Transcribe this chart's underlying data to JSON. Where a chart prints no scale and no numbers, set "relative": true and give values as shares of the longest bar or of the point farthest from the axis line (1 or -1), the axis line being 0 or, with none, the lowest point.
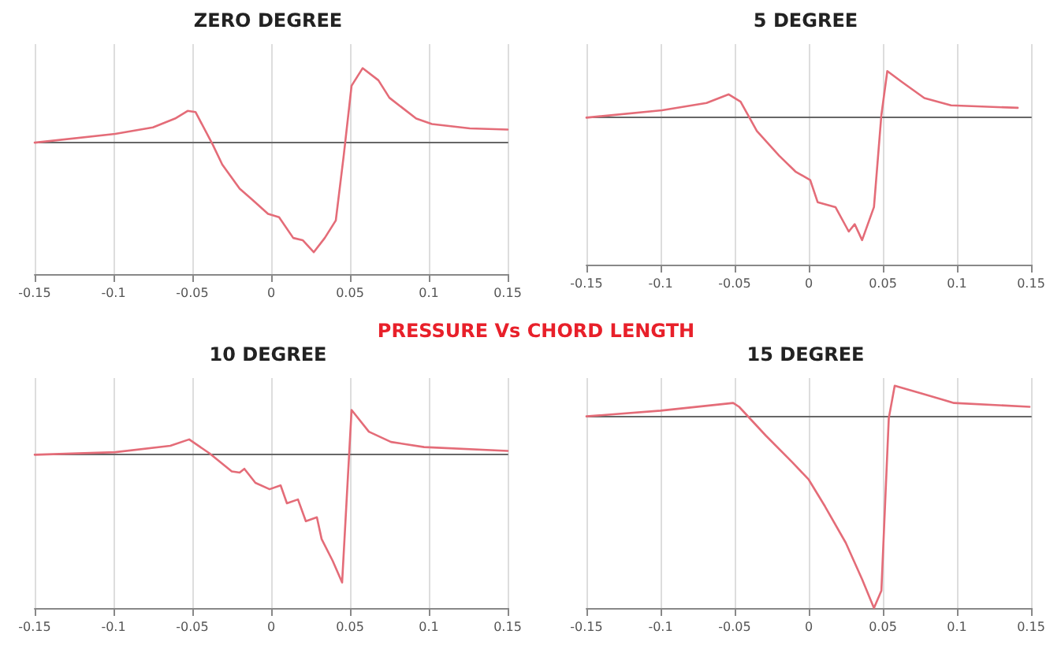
{
  "chart_data": [
    {
      "type": "line",
      "title": "ZERO DEGREE",
      "relative": true,
      "xlim": [
        -0.15,
        0.15
      ],
      "xticks": [
        -0.15,
        -0.1,
        -0.05,
        0,
        0.05,
        0.1,
        0.15
      ],
      "grid": "x",
      "marker": "none",
      "line_style": "solid",
      "series": [
        {
          "color": "#e46c78",
          "x": [
            -0.15,
            -0.099,
            -0.075,
            -0.061,
            -0.053,
            -0.048,
            -0.037,
            -0.031,
            -0.02,
            -0.012,
            -0.002,
            0.005,
            0.014,
            0.02,
            0.027,
            0.034,
            0.041,
            0.046,
            0.051,
            0.058,
            0.068,
            0.075,
            0.092,
            0.102,
            0.126,
            0.15
          ],
          "values": [
            0,
            0.08,
            0.14,
            0.22,
            0.29,
            0.28,
            -0.02,
            -0.2,
            -0.42,
            -0.52,
            -0.65,
            -0.68,
            -0.87,
            -0.89,
            -1,
            -0.87,
            -0.71,
            -0.12,
            0.52,
            0.68,
            0.57,
            0.41,
            0.22,
            0.17,
            0.13,
            0.12
          ]
        }
      ]
    },
    {
      "type": "line",
      "title": "5 DEGREE",
      "relative": true,
      "xlim": [
        -0.15,
        0.15
      ],
      "xticks": [
        -0.15,
        -0.1,
        -0.05,
        0,
        0.05,
        0.1,
        0.15
      ],
      "grid": "x",
      "marker": "none",
      "line_style": "solid",
      "series": [
        {
          "color": "#e46c78",
          "x": [
            -0.15,
            -0.099,
            -0.069,
            -0.054,
            -0.046,
            -0.035,
            -0.02,
            -0.009,
            0.001,
            0.006,
            0.018,
            0.027,
            0.031,
            0.036,
            0.044,
            0.049,
            0.053,
            0.063,
            0.078,
            0.096,
            0.141
          ],
          "values": [
            0,
            0.06,
            0.12,
            0.19,
            0.13,
            -0.11,
            -0.31,
            -0.44,
            -0.51,
            -0.69,
            -0.73,
            -0.93,
            -0.87,
            -1,
            -0.73,
            0.02,
            0.38,
            0.29,
            0.16,
            0.1,
            0.08
          ]
        }
      ]
    },
    {
      "type": "other",
      "title": "PRESSURE Vs CHORD LENGTH"
    },
    {
      "type": "line",
      "title": "10 DEGREE",
      "relative": true,
      "xlim": [
        -0.15,
        0.15
      ],
      "xticks": [
        -0.15,
        -0.1,
        -0.05,
        0,
        0.05,
        0.1,
        0.15
      ],
      "grid": "x",
      "marker": "none",
      "line_style": "solid",
      "series": [
        {
          "color": "#e46c78",
          "x": [
            -0.15,
            -0.099,
            -0.064,
            -0.052,
            -0.039,
            -0.025,
            -0.02,
            -0.017,
            -0.01,
            -0.001,
            0.006,
            0.01,
            0.017,
            0.022,
            0.029,
            0.032,
            0.039,
            0.045,
            0.051,
            0.062,
            0.076,
            0.097,
            0.15
          ],
          "values": [
            0,
            0.02,
            0.07,
            0.12,
            0.01,
            -0.13,
            -0.14,
            -0.11,
            -0.22,
            -0.27,
            -0.24,
            -0.38,
            -0.35,
            -0.52,
            -0.49,
            -0.66,
            -0.83,
            -1,
            0.35,
            0.18,
            0.1,
            0.06,
            0.03
          ]
        }
      ]
    },
    {
      "type": "line",
      "title": "15 DEGREE",
      "relative": true,
      "xlim": [
        -0.15,
        0.15
      ],
      "xticks": [
        -0.15,
        -0.1,
        -0.05,
        0,
        0.05,
        0.1,
        0.15
      ],
      "grid": "x",
      "marker": "none",
      "line_style": "solid",
      "series": [
        {
          "color": "#e46c78",
          "x": [
            -0.15,
            -0.1,
            -0.051,
            -0.047,
            -0.029,
            -0.011,
            0,
            0.011,
            0.025,
            0.036,
            0.044,
            0.049,
            0.054,
            0.058,
            0.076,
            0.098,
            0.149
          ],
          "values": [
            0,
            0.03,
            0.07,
            0.05,
            -0.1,
            -0.24,
            -0.33,
            -0.47,
            -0.66,
            -0.85,
            -1,
            -0.91,
            -0.01,
            0.16,
            0.12,
            0.07,
            0.05
          ]
        }
      ]
    }
  ]
}
